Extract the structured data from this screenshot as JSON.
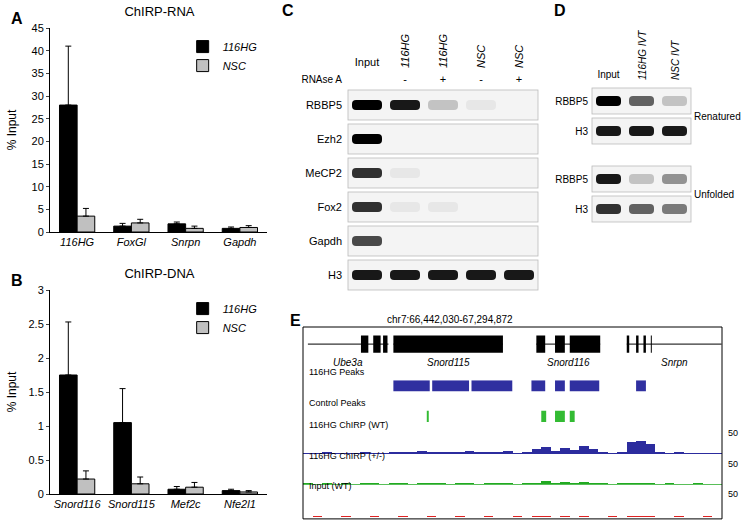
{
  "chart_data": [
    {
      "panel": "A",
      "type": "bar",
      "title": "ChIRP-RNA",
      "y_label": "% Input",
      "categories": [
        "116HG",
        "FoxGl",
        "Snrpn",
        "Gapdh"
      ],
      "series": [
        {
          "name": "116HG",
          "color": "#000000",
          "values": [
            28,
            1.3,
            1.8,
            0.8
          ],
          "errors": [
            13,
            0.6,
            0.4,
            0.3
          ]
        },
        {
          "name": "NSC",
          "color": "#c0c0c0",
          "values": [
            3.5,
            2,
            0.8,
            1.0
          ],
          "errors": [
            1.7,
            0.8,
            0.5,
            0.4
          ]
        }
      ],
      "ylim": [
        0,
        45
      ],
      "yticks": [
        0,
        5,
        10,
        15,
        20,
        25,
        30,
        35,
        40,
        45
      ],
      "grid": false,
      "legend": "top-right"
    },
    {
      "panel": "B",
      "type": "bar",
      "title": "ChIRP-DNA",
      "y_label": "% Input",
      "categories": [
        "Snord116",
        "Snord115",
        "Mef2c",
        "Nfe2l1"
      ],
      "series": [
        {
          "name": "116HG",
          "color": "#000000",
          "values": [
            1.75,
            1.05,
            0.07,
            0.05
          ],
          "errors": [
            0.78,
            0.5,
            0.04,
            0.02
          ]
        },
        {
          "name": "NSC",
          "color": "#c0c0c0",
          "values": [
            0.22,
            0.15,
            0.1,
            0.03
          ],
          "errors": [
            0.12,
            0.1,
            0.07,
            0.02
          ]
        }
      ],
      "ylim": [
        0,
        3
      ],
      "yticks": [
        0,
        0.5,
        1,
        1.5,
        2,
        2.5,
        3
      ],
      "grid": false,
      "legend": "top-right"
    }
  ],
  "blot_C": {
    "panel": "C",
    "columns": [
      "Input",
      "116HG",
      "116HG",
      "NSC",
      "NSC"
    ],
    "treatment": {
      "label": "RNAse A",
      "values": [
        null,
        "-",
        "+",
        "-",
        "+"
      ]
    },
    "rows": [
      {
        "label": "RBBP5",
        "bands": [
          1,
          0.9,
          0.2,
          0.05,
          0
        ]
      },
      {
        "label": "Ezh2",
        "bands": [
          1,
          0,
          0,
          0,
          0
        ]
      },
      {
        "label": "MeCP2",
        "bands": [
          0.8,
          0.05,
          0,
          0,
          0
        ]
      },
      {
        "label": "Fox2",
        "bands": [
          0.8,
          0.05,
          0.05,
          0,
          0
        ]
      },
      {
        "label": "Gapdh",
        "bands": [
          0.7,
          0,
          0,
          0,
          0
        ]
      },
      {
        "label": "H3",
        "bands": [
          0.9,
          0.9,
          0.9,
          0.9,
          0.9
        ]
      }
    ]
  },
  "blot_D": {
    "panel": "D",
    "columns": [
      "Input",
      "116HG IVT",
      "NSC IVT"
    ],
    "groups": [
      {
        "label": "Renatured",
        "rows": [
          {
            "label": "RBBP5",
            "bands": [
              1,
              0.6,
              0.2
            ]
          },
          {
            "label": "H3",
            "bands": [
              0.9,
              0.9,
              0.9
            ]
          }
        ]
      },
      {
        "label": "Unfolded",
        "rows": [
          {
            "label": "RBBP5",
            "bands": [
              0.9,
              0.2,
              0.4
            ]
          },
          {
            "label": "H3",
            "bands": [
              0.8,
              0.6,
              0.5
            ]
          }
        ]
      }
    ]
  },
  "browser_E": {
    "panel": "E",
    "title": "chr7:66,442,030-67,294,872",
    "xlim": [
      66442030,
      67294872
    ],
    "genes": [
      {
        "name": "Ube3a",
        "span": [
          66452000,
          66616000
        ],
        "exons": [
          [
            66560000,
            66575000
          ],
          [
            66585000,
            66600000
          ],
          [
            66605000,
            66614000
          ]
        ]
      },
      {
        "name": "Snord115",
        "span": [
          66626000,
          66849000
        ],
        "exons": [
          [
            66626000,
            66849000
          ]
        ]
      },
      {
        "name": "Snord116",
        "span": [
          66917000,
          67047000
        ],
        "exons": [
          [
            66917000,
            66935000
          ],
          [
            66955000,
            66975000
          ],
          [
            66985000,
            67047000
          ]
        ]
      },
      {
        "name": "Snrpn",
        "span": [
          67101000,
          67294000
        ],
        "exons": [
          [
            67101000,
            67106000
          ],
          [
            67120000,
            67125000
          ],
          [
            67135000,
            67140000
          ],
          [
            67150000,
            67152000
          ]
        ]
      }
    ],
    "peak_tracks": [
      {
        "name": "116HG Peaks",
        "color": "#3030a0",
        "peaks": [
          [
            66626000,
            66700000
          ],
          [
            66705000,
            66780000
          ],
          [
            66785000,
            66868000
          ],
          [
            66907000,
            66935000
          ],
          [
            66955000,
            66975000
          ],
          [
            66985000,
            67045000
          ],
          [
            67120000,
            67140000
          ]
        ]
      },
      {
        "name": "Control Peaks",
        "color": "#33bb33",
        "peaks": [
          [
            66694000,
            66698000
          ],
          [
            66927000,
            66937000
          ],
          [
            66955000,
            66975000
          ],
          [
            66985000,
            66995000
          ]
        ]
      }
    ],
    "signal_tracks": [
      {
        "name": "116HG ChIRP (WT)",
        "color": "#2c2c9e",
        "ylim": [
          0,
          50
        ],
        "values": [
          4,
          3,
          5,
          4,
          3,
          4,
          5,
          4,
          3,
          5,
          6,
          5,
          7,
          6,
          5,
          6,
          5,
          7,
          6,
          5,
          6,
          8,
          4,
          5,
          12,
          18,
          8,
          14,
          10,
          20,
          12,
          5,
          4,
          6,
          30,
          33,
          25,
          6,
          4,
          5,
          3,
          4,
          3,
          2
        ]
      },
      {
        "name": "116HG ChIRP (+/-)",
        "color": "#22aa22",
        "ylim": [
          0,
          50
        ],
        "values": [
          3,
          2,
          3,
          2,
          3,
          2,
          3,
          3,
          2,
          3,
          3,
          2,
          3,
          4,
          3,
          2,
          3,
          3,
          2,
          3,
          3,
          4,
          2,
          3,
          5,
          8,
          4,
          6,
          5,
          7,
          4,
          3,
          2,
          3,
          4,
          5,
          3,
          2,
          3,
          2,
          2,
          3,
          2,
          2
        ]
      },
      {
        "name": "Input (WT)",
        "color": "#dd2222",
        "ylim": [
          0,
          50
        ],
        "values": [
          1,
          2,
          1,
          1,
          2,
          1,
          1,
          2,
          1,
          1,
          2,
          1,
          1,
          2,
          1,
          1,
          2,
          1,
          1,
          2,
          1,
          1,
          2,
          1,
          3,
          2,
          1,
          2,
          1,
          2,
          1,
          1,
          2,
          1,
          2,
          3,
          2,
          1,
          1,
          2,
          1,
          1,
          2,
          1
        ]
      }
    ]
  }
}
